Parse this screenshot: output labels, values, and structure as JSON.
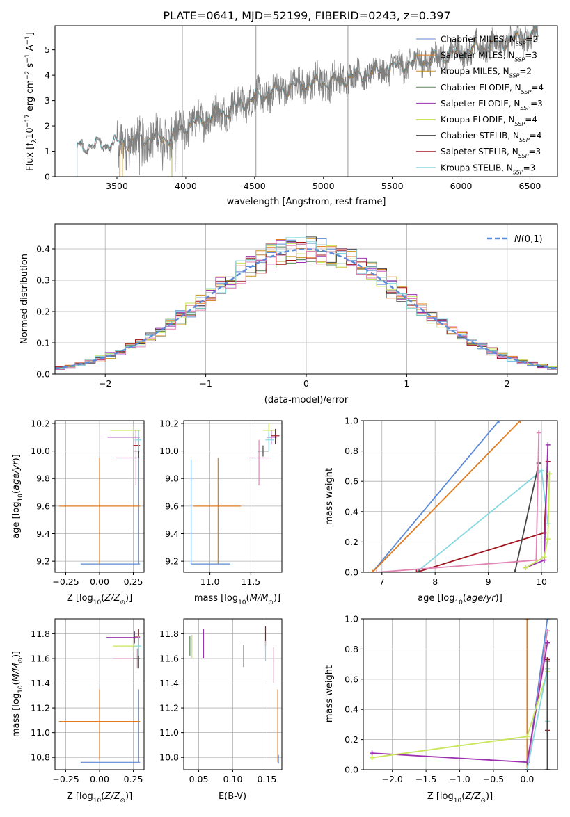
{
  "title": "PLATE=0641, MJD=52199, FIBERID=0243, z=0.397",
  "colors": {
    "chabrier_miles": "#5b8ad6",
    "salpeter_miles": "#e07b1f",
    "kroupa_miles": "#c9901a",
    "chabrier_elodie": "#5a8a5a",
    "salpeter_elodie": "#9b30b0",
    "kroupa_elodie": "#c8e65a",
    "chabrier_stelib": "#444444",
    "salpeter_stelib": "#a0141e",
    "kroupa_stelib": "#86d8e0",
    "pink": "#e084b4",
    "data": "#808080",
    "grid": "#b0b0b0",
    "normal": "#5b8ad6"
  },
  "chart_data": [
    {
      "id": "spectrum",
      "type": "line",
      "xlabel": "wavelength [Angstrom, rest frame]",
      "ylabel": "Flux [f",
      "xlim": [
        3050,
        6700
      ],
      "ylim": [
        0,
        5.95
      ],
      "xticks": [
        3500,
        4000,
        4500,
        5000,
        5500,
        6000,
        6500
      ],
      "yticks": [
        0,
        1,
        2,
        3,
        4,
        5
      ],
      "legend_position": "top-right",
      "legend": [
        {
          "key": "chabrier_miles",
          "label": "Chabrier MILES, N",
          "n": "2"
        },
        {
          "key": "salpeter_miles",
          "label": "Salpeter MILES, N",
          "n": "3"
        },
        {
          "key": "kroupa_miles",
          "label": "Kroupa MILES, N",
          "n": "2"
        },
        {
          "key": "chabrier_elodie",
          "label": "Chabrier ELODIE, N",
          "n": "4"
        },
        {
          "key": "salpeter_elodie",
          "label": "Salpeter ELODIE, N",
          "n": "3"
        },
        {
          "key": "kroupa_elodie",
          "label": "Kroupa ELODIE, N",
          "n": "4"
        },
        {
          "key": "chabrier_stelib",
          "label": "Chabrier STELIB, N",
          "n": "4"
        },
        {
          "key": "salpeter_stelib",
          "label": "Salpeter STELIB, N",
          "n": "3"
        },
        {
          "key": "kroupa_stelib",
          "label": "Kroupa STELIB, N",
          "n": "3"
        }
      ],
      "continuum": [
        [
          3210,
          1.15
        ],
        [
          3500,
          1.3
        ],
        [
          3700,
          1.5
        ],
        [
          3900,
          1.55
        ],
        [
          4000,
          2.0
        ],
        [
          4300,
          2.6
        ],
        [
          4500,
          3.1
        ],
        [
          4800,
          3.6
        ],
        [
          5000,
          3.7
        ],
        [
          5200,
          3.9
        ],
        [
          5500,
          4.3
        ],
        [
          6000,
          4.9
        ],
        [
          6550,
          5.6
        ]
      ]
    },
    {
      "id": "residuals",
      "type": "histogram",
      "xlabel": "(data-model)/error",
      "ylabel": "Normed distribution",
      "xlim": [
        -2.5,
        2.5
      ],
      "ylim": [
        0,
        0.48
      ],
      "xticks": [
        -2,
        -1,
        0,
        1,
        2
      ],
      "yticks": [
        0.0,
        0.1,
        0.2,
        0.3,
        0.4
      ],
      "legend_position": "top-right",
      "legend": [
        {
          "key": "normal",
          "label": "N(0,1)"
        }
      ]
    },
    {
      "id": "age_vs_Z",
      "type": "errorbar",
      "xlabel": "Z [log10(Z/Z⊙)]",
      "ylabel": "age [log10(age/yr)]",
      "xlim": [
        -0.33,
        0.33
      ],
      "ylim": [
        9.12,
        10.22
      ],
      "xticks": [
        -0.25,
        0.0,
        0.25
      ],
      "yticks": [
        9.2,
        9.4,
        9.6,
        9.8,
        10.0,
        10.2
      ],
      "points": [
        {
          "key": "chabrier_miles",
          "x": 0.29,
          "y": 9.18,
          "x0": -0.14,
          "x1": 0.3,
          "y0": 9.18,
          "y1": 10.1
        },
        {
          "key": "salpeter_miles",
          "x": 0.0,
          "y": 9.6,
          "x0": -0.3,
          "x1": 0.3,
          "y0": 9.18,
          "y1": 9.95
        },
        {
          "key": "kroupa_elodie",
          "x": 0.25,
          "y": 10.15,
          "x0": 0.08,
          "x1": 0.3,
          "y0": 10.1,
          "y1": 10.18
        },
        {
          "key": "salpeter_elodie",
          "x": 0.27,
          "y": 10.1,
          "x0": 0.06,
          "x1": 0.3,
          "y0": 10.05,
          "y1": 10.15
        },
        {
          "key": "pink",
          "x": 0.27,
          "y": 9.95,
          "x0": 0.12,
          "x1": 0.3,
          "y0": 9.75,
          "y1": 10.1
        },
        {
          "key": "salpeter_stelib",
          "x": 0.29,
          "y": 10.04,
          "x0": 0.25,
          "x1": 0.3,
          "y0": 9.98,
          "y1": 10.1
        },
        {
          "key": "chabrier_stelib",
          "x": 0.29,
          "y": 10.0,
          "x0": 0.25,
          "x1": 0.3,
          "y0": 9.95,
          "y1": 10.05
        },
        {
          "key": "kroupa_stelib",
          "x": 0.29,
          "y": 10.08,
          "x0": 0.26,
          "x1": 0.31,
          "y0": 10.0,
          "y1": 10.15
        }
      ]
    },
    {
      "id": "age_vs_mass",
      "type": "errorbar",
      "xlabel": "mass [log10(M/M⊙)]",
      "ylabel": "",
      "xlim": [
        10.68,
        11.88
      ],
      "ylim": [
        9.12,
        10.22
      ],
      "xticks": [
        11.0,
        11.5
      ],
      "yticks": [
        9.2,
        9.4,
        9.6,
        9.8,
        10.0,
        10.2
      ],
      "points": [
        {
          "key": "chabrier_miles",
          "x": 10.77,
          "y": 9.18,
          "x0": 10.77,
          "x1": 11.25,
          "y0": 9.18,
          "y1": 9.94
        },
        {
          "key": "salpeter_miles",
          "x": 11.1,
          "y": 9.6,
          "x0": 10.8,
          "x1": 11.38,
          "y0": 9.18,
          "y1": 9.95
        },
        {
          "key": "kroupa_elodie",
          "x": 11.72,
          "y": 10.15,
          "x0": 11.65,
          "x1": 11.8,
          "y0": 10.1,
          "y1": 10.2
        },
        {
          "key": "salpeter_elodie",
          "x": 11.75,
          "y": 10.1,
          "x0": 11.7,
          "x1": 11.82,
          "y0": 10.05,
          "y1": 10.15
        },
        {
          "key": "pink",
          "x": 11.6,
          "y": 9.95,
          "x0": 11.48,
          "x1": 11.72,
          "y0": 9.75,
          "y1": 10.08
        },
        {
          "key": "salpeter_stelib",
          "x": 11.8,
          "y": 10.11,
          "x0": 11.75,
          "x1": 11.85,
          "y0": 10.05,
          "y1": 10.16
        },
        {
          "key": "chabrier_stelib",
          "x": 11.65,
          "y": 10.0,
          "x0": 11.58,
          "x1": 11.72,
          "y0": 9.96,
          "y1": 10.04
        },
        {
          "key": "kroupa_stelib",
          "x": 11.72,
          "y": 10.08,
          "x0": 11.68,
          "x1": 11.78,
          "y0": 10.0,
          "y1": 10.14
        }
      ]
    },
    {
      "id": "weight_vs_age",
      "type": "line",
      "xlabel": "age [log10(age/yr)]",
      "ylabel": "mass weight",
      "xlim": [
        6.65,
        10.3
      ],
      "ylim": [
        0,
        1
      ],
      "xticks": [
        7,
        8,
        9,
        10
      ],
      "yticks": [
        0.0,
        0.2,
        0.4,
        0.6,
        0.8,
        1.0
      ],
      "series": [
        {
          "key": "chabrier_miles",
          "points": [
            [
              6.82,
              0.0
            ],
            [
              9.2,
              1.0
            ]
          ]
        },
        {
          "key": "salpeter_miles",
          "points": [
            [
              6.82,
              0.0
            ],
            [
              9.6,
              1.0
            ]
          ]
        },
        {
          "key": "kroupa_stelib",
          "points": [
            [
              7.65,
              0.0
            ],
            [
              10.0,
              0.67
            ],
            [
              10.12,
              0.32
            ]
          ]
        },
        {
          "key": "salpeter_stelib",
          "points": [
            [
              7.65,
              0.0
            ],
            [
              10.05,
              0.26
            ],
            [
              10.12,
              0.73
            ]
          ]
        },
        {
          "key": "chabrier_stelib",
          "points": [
            [
              7.7,
              0.0
            ],
            [
              9.5,
              0.0
            ],
            [
              9.95,
              0.72
            ]
          ]
        },
        {
          "key": "pink",
          "points": [
            [
              6.9,
              0.0
            ],
            [
              9.9,
              0.08
            ],
            [
              9.95,
              0.92
            ]
          ]
        },
        {
          "key": "salpeter_elodie",
          "points": [
            [
              9.7,
              0.03
            ],
            [
              10.05,
              0.08
            ],
            [
              10.12,
              0.84
            ]
          ]
        },
        {
          "key": "kroupa_elodie",
          "points": [
            [
              9.7,
              0.03
            ],
            [
              10.05,
              0.1
            ],
            [
              10.12,
              0.22
            ],
            [
              10.15,
              0.65
            ]
          ]
        }
      ]
    },
    {
      "id": "mass_vs_Z",
      "type": "errorbar",
      "xlabel": "Z [log10(Z/Z⊙)]",
      "ylabel": "mass [log10(M/M⊙)]",
      "xlim": [
        -0.33,
        0.33
      ],
      "ylim": [
        10.7,
        11.92
      ],
      "xticks": [
        -0.25,
        0.0,
        0.25
      ],
      "yticks": [
        10.8,
        11.0,
        11.2,
        11.4,
        11.6,
        11.8
      ],
      "points": [
        {
          "key": "chabrier_miles",
          "x": 0.29,
          "y": 10.76,
          "x0": -0.14,
          "x1": 0.3,
          "y0": 10.76,
          "y1": 11.35
        },
        {
          "key": "salpeter_miles",
          "x": 0.0,
          "y": 11.09,
          "x0": -0.3,
          "x1": 0.3,
          "y0": 10.78,
          "y1": 11.35
        },
        {
          "key": "salpeter_elodie",
          "x": 0.26,
          "y": 11.77,
          "x0": 0.05,
          "x1": 0.3,
          "y0": 11.72,
          "y1": 11.82
        },
        {
          "key": "kroupa_elodie",
          "x": 0.25,
          "y": 11.7,
          "x0": 0.1,
          "x1": 0.3,
          "y0": 11.65,
          "y1": 11.76
        },
        {
          "key": "pink",
          "x": 0.28,
          "y": 11.6,
          "x0": 0.1,
          "x1": 0.3,
          "y0": 11.52,
          "y1": 11.68
        },
        {
          "key": "salpeter_stelib",
          "x": 0.29,
          "y": 11.78,
          "x0": 0.26,
          "x1": 0.3,
          "y0": 11.7,
          "y1": 11.84
        },
        {
          "key": "chabrier_stelib",
          "x": 0.29,
          "y": 11.6,
          "x0": 0.25,
          "x1": 0.3,
          "y0": 11.52,
          "y1": 11.68
        },
        {
          "key": "kroupa_stelib",
          "x": 0.29,
          "y": 11.7,
          "x0": 0.26,
          "x1": 0.31,
          "y0": 11.62,
          "y1": 11.78
        }
      ]
    },
    {
      "id": "mass_vs_ebv",
      "type": "errorbar",
      "xlabel": "E(B-V)",
      "ylabel": "",
      "xlim": [
        0.028,
        0.172
      ],
      "ylim": [
        10.7,
        11.92
      ],
      "xticks": [
        0.05,
        0.1,
        0.15
      ],
      "yticks": [
        10.8,
        11.0,
        11.2,
        11.4,
        11.6,
        11.8
      ],
      "points": [
        {
          "key": "kroupa_elodie",
          "x": 0.04,
          "y": 11.7,
          "y0": 11.6,
          "y1": 11.79
        },
        {
          "key": "chabrier_elodie",
          "x": 0.037,
          "y": 11.7,
          "y0": 11.62,
          "y1": 11.78
        },
        {
          "key": "salpeter_elodie",
          "x": 0.057,
          "y": 11.7,
          "y0": 11.6,
          "y1": 11.84
        },
        {
          "key": "chabrier_stelib",
          "x": 0.116,
          "y": 11.62,
          "y0": 11.53,
          "y1": 11.71
        },
        {
          "key": "salpeter_stelib",
          "x": 0.148,
          "y": 11.77,
          "y0": 11.7,
          "y1": 11.86
        },
        {
          "key": "kroupa_stelib",
          "x": 0.148,
          "y": 11.65,
          "y0": 11.58,
          "y1": 11.74
        },
        {
          "key": "pink",
          "x": 0.16,
          "y": 11.55,
          "y0": 11.4,
          "y1": 11.69
        },
        {
          "key": "salpeter_miles",
          "x": 0.166,
          "y": 11.05,
          "y0": 10.76,
          "y1": 11.35
        },
        {
          "key": "chabrier_miles",
          "x": 0.167,
          "y": 10.75,
          "y0": 10.75,
          "y1": 10.82
        }
      ]
    },
    {
      "id": "weight_vs_Z",
      "type": "line",
      "xlabel": "Z [log10(Z/Z⊙)]",
      "ylabel": "mass weight",
      "xlim": [
        -2.43,
        0.45
      ],
      "ylim": [
        0,
        1
      ],
      "xticks": [
        -2.0,
        -1.5,
        -1.0,
        -0.5,
        0.0
      ],
      "yticks": [
        0.0,
        0.2,
        0.4,
        0.6,
        0.8,
        1.0
      ],
      "series": [
        {
          "key": "salpeter_miles",
          "points": [
            [
              0.0,
              0.0
            ],
            [
              0.0,
              1.0
            ]
          ]
        },
        {
          "key": "chabrier_miles",
          "points": [
            [
              0.0,
              0.0
            ],
            [
              0.3,
              1.0
            ]
          ]
        },
        {
          "key": "pink",
          "points": [
            [
              0.0,
              0.0
            ],
            [
              0.3,
              0.92
            ]
          ]
        },
        {
          "key": "salpeter_elodie",
          "points": [
            [
              -2.3,
              0.11
            ],
            [
              0.0,
              0.05
            ],
            [
              0.3,
              0.84
            ]
          ]
        },
        {
          "key": "kroupa_elodie",
          "points": [
            [
              -2.3,
              0.08
            ],
            [
              0.0,
              0.22
            ],
            [
              0.3,
              0.65
            ]
          ]
        },
        {
          "key": "kroupa_stelib",
          "points": [
            [
              0.0,
              0.0
            ],
            [
              0.3,
              0.67
            ],
            [
              0.3,
              0.32
            ]
          ]
        },
        {
          "key": "salpeter_stelib",
          "points": [
            [
              0.3,
              0.26
            ],
            [
              0.3,
              0.73
            ]
          ]
        },
        {
          "key": "chabrier_stelib",
          "points": [
            [
              0.3,
              0.0
            ],
            [
              0.3,
              0.72
            ]
          ]
        }
      ]
    }
  ]
}
